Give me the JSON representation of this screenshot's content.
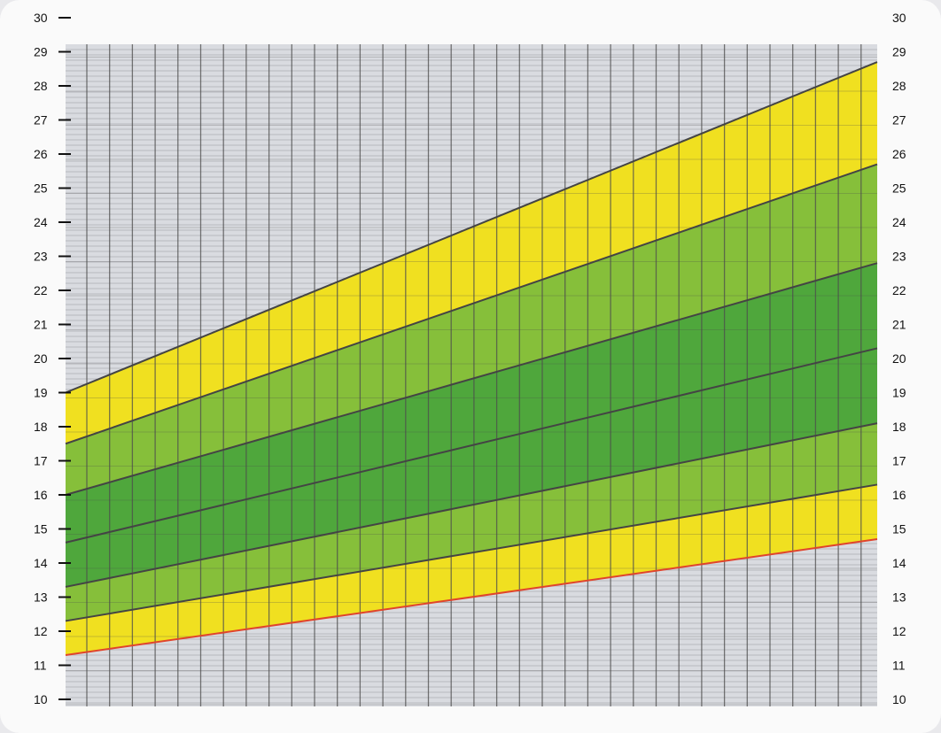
{
  "chart_data": {
    "type": "area",
    "title": "",
    "xlabel": "",
    "ylabel": "",
    "ylim": [
      10,
      30
    ],
    "y_ticks_left": [
      10,
      11,
      12,
      13,
      14,
      15,
      16,
      17,
      18,
      19,
      20,
      21,
      22,
      23,
      24,
      25,
      26,
      27,
      28,
      29,
      30
    ],
    "y_ticks_right": [
      10,
      11,
      12,
      13,
      14,
      15,
      16,
      17,
      18,
      19,
      20,
      21,
      22,
      23,
      24,
      25,
      26,
      27,
      28,
      29,
      30
    ],
    "x_range": [
      0,
      1
    ],
    "grid": true,
    "series": [
      {
        "values_start": 11.3,
        "values_end": 14.7,
        "color": "#e0442c"
      },
      {
        "values_start": 12.3,
        "values_end": 16.3,
        "color": "#444444"
      },
      {
        "values_start": 13.3,
        "values_end": 18.1,
        "color": "#444444"
      },
      {
        "values_start": 14.6,
        "values_end": 20.3,
        "color": "#444444"
      },
      {
        "values_start": 16.0,
        "values_end": 22.8,
        "color": "#444444"
      },
      {
        "values_start": 17.5,
        "values_end": 25.7,
        "color": "#444444"
      },
      {
        "values_start": 19.0,
        "values_end": 28.7,
        "color": "#444444"
      }
    ],
    "bands": [
      {
        "from": 0,
        "to": 1,
        "color": "#f0e020"
      },
      {
        "from": 1,
        "to": 2,
        "color": "#86bf3a"
      },
      {
        "from": 2,
        "to": 3,
        "color": "#4fa73c"
      },
      {
        "from": 3,
        "to": 4,
        "color": "#4fa73c"
      },
      {
        "from": 4,
        "to": 5,
        "color": "#86bf3a"
      },
      {
        "from": 5,
        "to": 6,
        "color": "#f0e020"
      }
    ],
    "colors": {
      "background": "#d9dbe0",
      "grid": "#4d4d4d",
      "minor_grid": "#b6b8be"
    }
  }
}
